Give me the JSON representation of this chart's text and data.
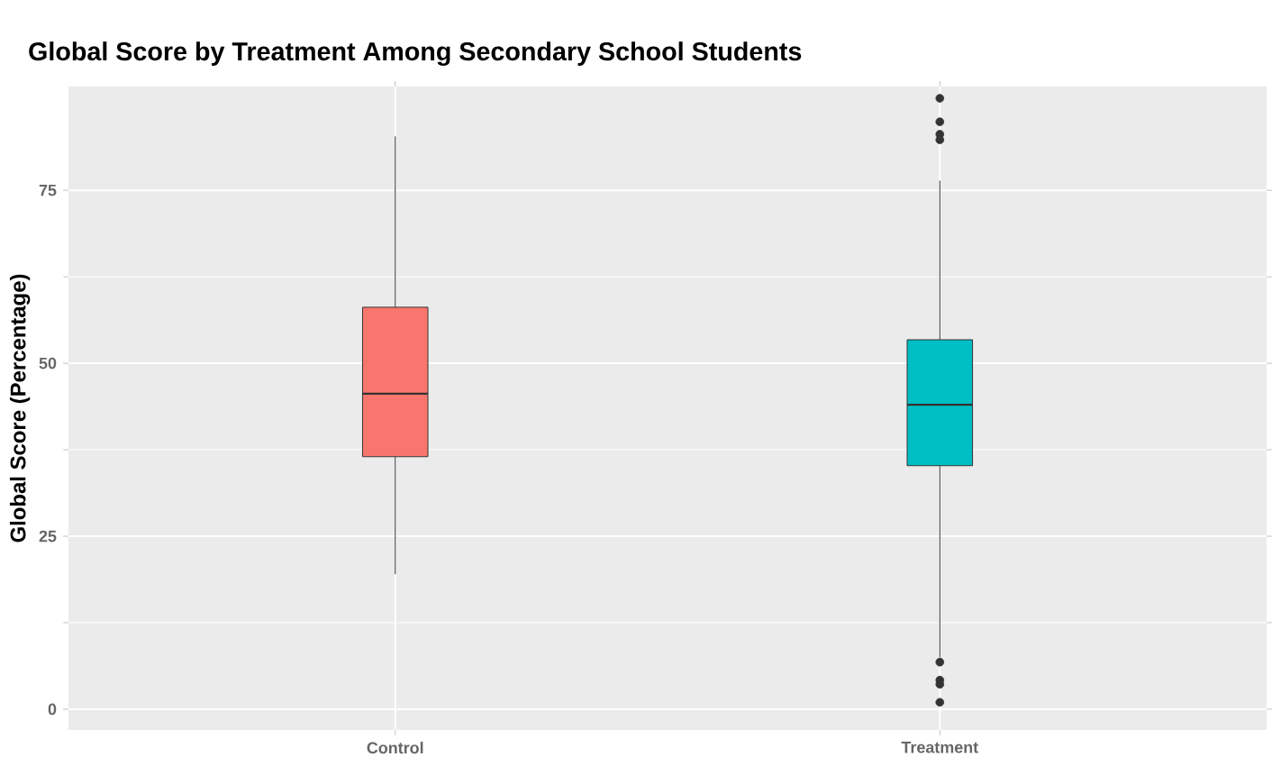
{
  "chart_data": {
    "type": "box",
    "title": "Global Score by Treatment Among Secondary School Students",
    "ylabel": "Global Score (Percentage)",
    "categories": [
      "Control",
      "Treatment"
    ],
    "colors": [
      "#f8766d",
      "#00bfc4"
    ],
    "boxes": [
      {
        "low": 19.5,
        "q1": 36.5,
        "median": 45.6,
        "q3": 58.1,
        "high": 82.8
      },
      {
        "low": 7.5,
        "q1": 35.2,
        "median": 44,
        "q3": 53.4,
        "high": 76.4,
        "outliers": [
          88.3,
          84.9,
          83.1,
          82.3,
          6.8,
          4.2,
          3.6,
          1.0
        ]
      }
    ],
    "ylim": [
      -3,
      90
    ],
    "yticks": [
      0,
      25,
      50,
      75
    ],
    "grid": true,
    "legend": false
  }
}
